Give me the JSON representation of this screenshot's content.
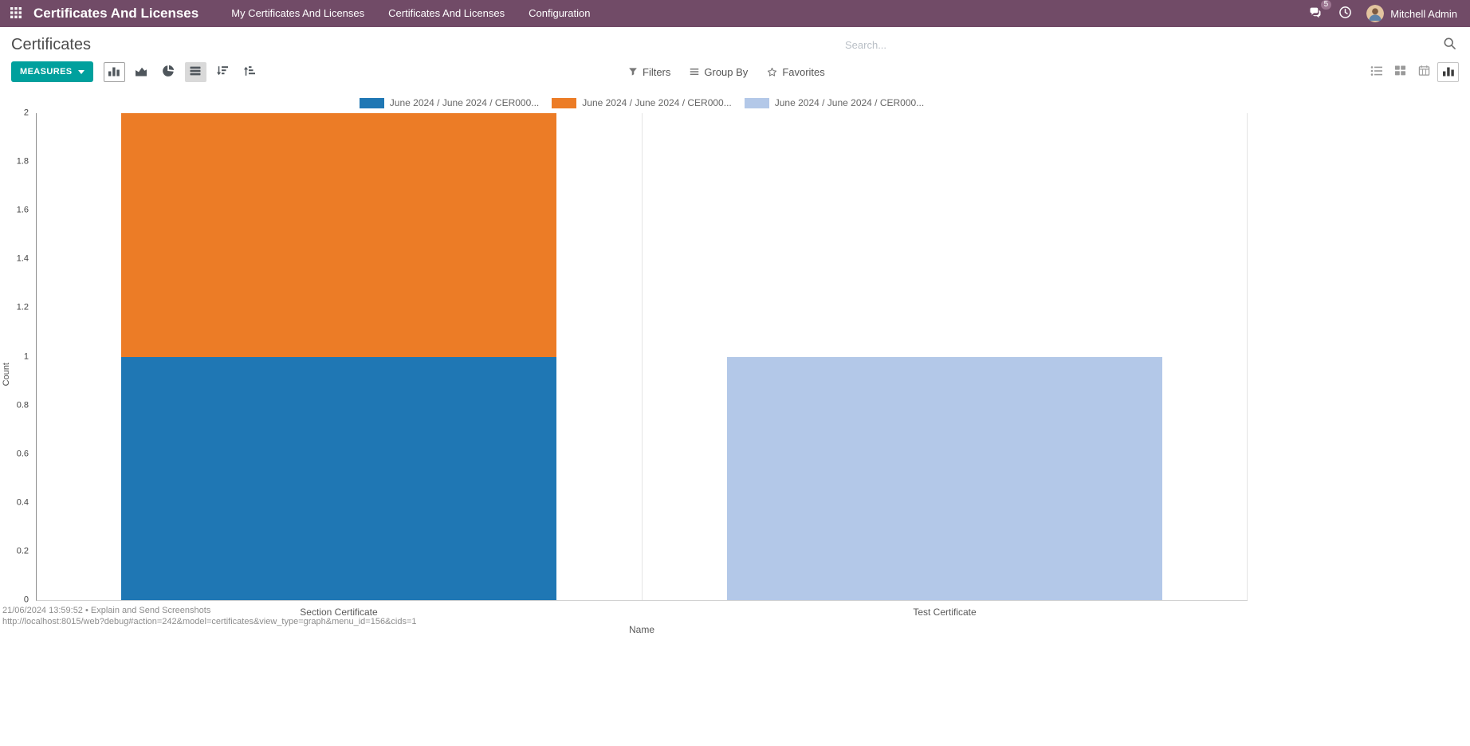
{
  "navbar": {
    "app_title": "Certificates And Licenses",
    "menu_items": [
      "My Certificates And Licenses",
      "Certificates And Licenses",
      "Configuration"
    ],
    "message_badge": "5",
    "user_name": "Mitchell Admin"
  },
  "control_panel": {
    "breadcrumb": "Certificates",
    "search_placeholder": "Search...",
    "measures_button": "MEASURES",
    "filters": "Filters",
    "group_by": "Group By",
    "favorites": "Favorites"
  },
  "chart_data": {
    "type": "bar",
    "stacked": true,
    "title": "",
    "xlabel": "Name",
    "ylabel": "Count",
    "ylim": [
      0,
      2
    ],
    "yticks": [
      0,
      0.2,
      0.4,
      0.6,
      0.8,
      1,
      1.2,
      1.4,
      1.6,
      1.8,
      2
    ],
    "categories": [
      "Section Certificate",
      "Test Certificate"
    ],
    "series": [
      {
        "name": "June 2024 / June 2024 / CER000...",
        "color": "#1f77b4",
        "values": [
          1,
          0
        ]
      },
      {
        "name": "June 2024 / June 2024 / CER000...",
        "color": "#ec7c26",
        "values": [
          1,
          0
        ]
      },
      {
        "name": "June 2024 / June 2024 / CER000...",
        "color": "#b3c8e8",
        "values": [
          0,
          1
        ]
      }
    ],
    "legend_position": "top",
    "grid": "vertical-only"
  },
  "overlay": {
    "timestamp_line": "21/06/2024 13:59:52 • Explain and Send Screenshots",
    "url_line": "http://localhost:8015/web?debug#action=242&model=certificates&view_type=graph&menu_id=156&cids=1"
  },
  "colors": {
    "navbar_bg": "#714B67",
    "measures_bg": "#00A09D"
  },
  "icons": {
    "apps-grid-icon": "3x3 squares",
    "messages-icon": "chat bubbles",
    "activities-icon": "clock",
    "search-icon": "magnifier",
    "bar-chart-icon": "vertical bars",
    "area-chart-icon": "filled mountain",
    "pie-chart-icon": "pie with slice",
    "stacked-icon": "horizontal layers",
    "sort-desc-icon": "bars with down arrow",
    "sort-asc-icon": "bars with up arrow",
    "filter-icon": "funnel",
    "group-by-icon": "three lines",
    "favorites-icon": "star outline",
    "list-view-icon": "bulleted list",
    "kanban-view-icon": "four tiles",
    "calendar-view-icon": "calendar grid",
    "graph-view-icon": "vertical bars"
  }
}
